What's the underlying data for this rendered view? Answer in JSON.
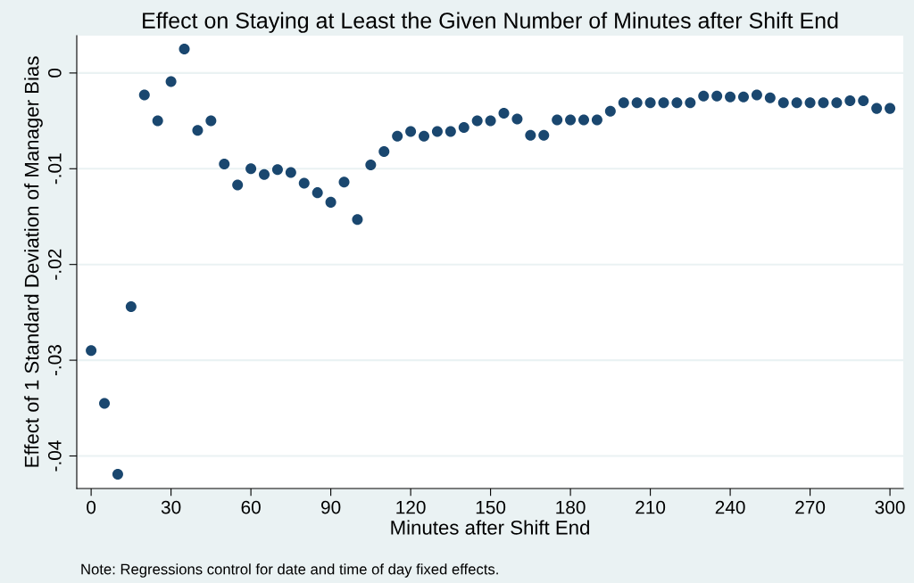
{
  "chart_data": {
    "type": "scatter",
    "title": "Effect on Staying at Least the Given Number of Minutes after Shift End",
    "xlabel": "Minutes after Shift End",
    "ylabel": "Effect of 1 Standard Deviation of Manager Bias",
    "annotations": [
      "Note: Regressions control for date and time of day fixed effects."
    ],
    "x": [
      0,
      5,
      10,
      15,
      20,
      25,
      30,
      35,
      40,
      45,
      50,
      55,
      60,
      65,
      70,
      75,
      80,
      85,
      90,
      95,
      100,
      105,
      110,
      115,
      120,
      125,
      130,
      135,
      140,
      145,
      150,
      155,
      160,
      165,
      170,
      175,
      180,
      185,
      190,
      195,
      200,
      205,
      210,
      215,
      220,
      225,
      230,
      235,
      240,
      245,
      250,
      255,
      260,
      265,
      270,
      275,
      280,
      285,
      290,
      295,
      300
    ],
    "series": [
      {
        "color": "#1a476f",
        "values": [
          -0.029,
          -0.0345,
          -0.0419,
          -0.0244,
          -0.0023,
          -0.005,
          -0.0009,
          0.0025,
          -0.006,
          -0.005,
          -0.0095,
          -0.0117,
          -0.01,
          -0.0106,
          -0.0101,
          -0.0104,
          -0.0115,
          -0.0125,
          -0.0135,
          -0.0114,
          -0.0153,
          -0.0096,
          -0.0082,
          -0.0066,
          -0.0061,
          -0.0066,
          -0.0061,
          -0.0061,
          -0.0057,
          -0.005,
          -0.005,
          -0.0042,
          -0.0048,
          -0.0065,
          -0.0065,
          -0.0049,
          -0.0049,
          -0.0049,
          -0.0049,
          -0.004,
          -0.0031,
          -0.0031,
          -0.0031,
          -0.0031,
          -0.0031,
          -0.0031,
          -0.0024,
          -0.0024,
          -0.0025,
          -0.0025,
          -0.0023,
          -0.0026,
          -0.0031,
          -0.0031,
          -0.0031,
          -0.0031,
          -0.0031,
          -0.0029,
          -0.0029,
          -0.0037,
          -0.0037
        ]
      }
    ],
    "xlim": [
      -5.4,
      305
    ],
    "xticks": [
      0,
      30,
      60,
      90,
      120,
      150,
      180,
      210,
      240,
      270,
      300
    ],
    "ylim": [
      -0.0434,
      0.0039
    ],
    "yticks": [
      {
        "value": -0.04,
        "label": "-.04"
      },
      {
        "value": -0.03,
        "label": "-.03"
      },
      {
        "value": -0.02,
        "label": "-.02"
      },
      {
        "value": -0.01,
        "label": "-.01"
      },
      {
        "value": 0,
        "label": "0"
      }
    ],
    "grid": "y",
    "marker": "circle"
  }
}
